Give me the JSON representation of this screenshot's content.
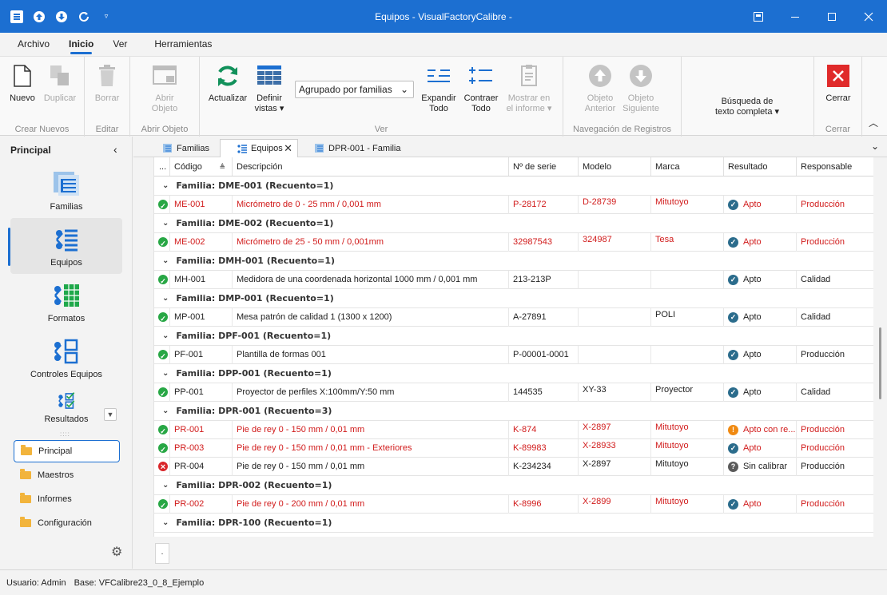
{
  "window": {
    "title": "Equipos - VisualFactoryCalibre -"
  },
  "menu": [
    "Archivo",
    "Inicio",
    "Ver",
    "Herramientas"
  ],
  "ribbon": {
    "nuevo": "Nuevo",
    "duplicar": "Duplicar",
    "borrar": "Borrar",
    "abrir_objeto_l1": "Abrir",
    "abrir_objeto_l2": "Objeto",
    "actualizar": "Actualizar",
    "definir_l1": "Definir",
    "definir_l2": "vistas",
    "combo": "Agrupado por familias",
    "expandir_l1": "Expandir",
    "expandir_l2": "Todo",
    "contraer_l1": "Contraer",
    "contraer_l2": "Todo",
    "mostrar_l1": "Mostrar en",
    "mostrar_l2": "el informe",
    "anterior_l1": "Objeto",
    "anterior_l2": "Anterior",
    "siguiente_l1": "Objeto",
    "siguiente_l2": "Siguiente",
    "busqueda_l1": "Búsqueda de",
    "busqueda_l2": "texto completa",
    "cerrar": "Cerrar",
    "groups": {
      "crear": "Crear Nuevos",
      "editar": "Editar",
      "abrir": "Abrir Objeto",
      "ver": "Ver",
      "navegacion": "Navegación de Registros",
      "cerrar": "Cerrar"
    }
  },
  "sidebar": {
    "title": "Principal",
    "items": [
      "Familias",
      "Equipos",
      "Formatos",
      "Controles Equipos",
      "Resultados"
    ],
    "nav": [
      "Principal",
      "Maestros",
      "Informes",
      "Configuración"
    ]
  },
  "tabs": [
    "Familias",
    "Equipos",
    "DPR-001 - Familia"
  ],
  "grid": {
    "columns": [
      "...",
      "Código",
      "Descripción",
      "Nº de serie",
      "Modelo",
      "Marca",
      "Resultado",
      "Responsable"
    ],
    "groups": [
      {
        "title": "Familia: DME-001 (Recuento=1)",
        "rows": [
          {
            "status": "ok",
            "red": true,
            "codigo": "ME-001",
            "desc": "Micrómetro de 0 - 25 mm / 0,001 mm",
            "serie": "P-28172",
            "modelo": "D-28739",
            "marca": "Mitutoyo",
            "res_icon": "ok",
            "resultado": "Apto",
            "resp": "Producción"
          }
        ]
      },
      {
        "title": "Familia: DME-002 (Recuento=1)",
        "rows": [
          {
            "status": "ok",
            "red": true,
            "codigo": "ME-002",
            "desc": "Micrómetro de 25 - 50 mm / 0,001mm",
            "serie": "32987543",
            "modelo": "324987",
            "marca": "Tesa",
            "res_icon": "ok",
            "resultado": "Apto",
            "resp": "Producción"
          }
        ]
      },
      {
        "title": "Familia: DMH-001 (Recuento=1)",
        "rows": [
          {
            "status": "ok",
            "red": false,
            "codigo": "MH-001",
            "desc": "Medidora de una coordenada horizontal 1000 mm / 0,001 mm",
            "serie": "213-213P",
            "modelo": "",
            "marca": "",
            "res_icon": "ok",
            "resultado": "Apto",
            "resp": "Calidad"
          }
        ]
      },
      {
        "title": "Familia: DMP-001 (Recuento=1)",
        "rows": [
          {
            "status": "ok",
            "red": false,
            "codigo": "MP-001",
            "desc": "Mesa patrón de calidad 1 (1300 x 1200)",
            "serie": "A-27891",
            "modelo": "",
            "marca": "POLI",
            "res_icon": "ok",
            "resultado": "Apto",
            "resp": "Calidad"
          }
        ]
      },
      {
        "title": "Familia: DPF-001 (Recuento=1)",
        "rows": [
          {
            "status": "ok",
            "red": false,
            "codigo": "PF-001",
            "desc": "Plantilla de formas 001",
            "serie": "P-00001-0001",
            "modelo": "",
            "marca": "",
            "res_icon": "ok",
            "resultado": "Apto",
            "resp": "Producción"
          }
        ]
      },
      {
        "title": "Familia: DPP-001 (Recuento=1)",
        "rows": [
          {
            "status": "ok",
            "red": false,
            "codigo": "PP-001",
            "desc": "Proyector de perfiles X:100mm/Y:50 mm",
            "serie": "144535",
            "modelo": "XY-33",
            "marca": "Proyector",
            "res_icon": "ok",
            "resultado": "Apto",
            "resp": "Calidad"
          }
        ]
      },
      {
        "title": "Familia: DPR-001 (Recuento=3)",
        "rows": [
          {
            "status": "ok",
            "red": true,
            "codigo": "PR-001",
            "desc": "Pie de rey 0 - 150 mm / 0,01 mm",
            "serie": "K-874",
            "modelo": "X-2897",
            "marca": "Mitutoyo",
            "res_icon": "warn",
            "resultado": "Apto con re...",
            "resp": "Producción"
          },
          {
            "status": "ok",
            "red": true,
            "codigo": "PR-003",
            "desc": "Pie de rey 0 - 150 mm / 0,01 mm - Exteriores",
            "serie": "K-89983",
            "modelo": "X-28933",
            "marca": "Mitutoyo",
            "res_icon": "ok",
            "resultado": "Apto",
            "resp": "Producción"
          },
          {
            "status": "bad",
            "red": false,
            "codigo": "PR-004",
            "desc": "Pie de rey 0 - 150 mm / 0,01 mm",
            "serie": "K-234234",
            "modelo": "X-2897",
            "marca": "Mitutoyo",
            "res_icon": "q",
            "resultado": "Sin calibrar",
            "resp": "Producción"
          }
        ]
      },
      {
        "title": "Familia: DPR-002 (Recuento=1)",
        "rows": [
          {
            "status": "ok",
            "red": true,
            "codigo": "PR-002",
            "desc": "Pie de rey 0 - 200 mm / 0,01 mm",
            "serie": "K-8996",
            "modelo": "X-2899",
            "marca": "Mitutoyo",
            "res_icon": "ok",
            "resultado": "Apto",
            "resp": "Producción"
          }
        ]
      },
      {
        "title": "Familia: DPR-100 (Recuento=1)",
        "rows": []
      }
    ]
  },
  "footer_button": ".",
  "status": {
    "user": "Usuario: Admin",
    "base": "Base: VFCalibre23_0_8_Ejemplo"
  }
}
